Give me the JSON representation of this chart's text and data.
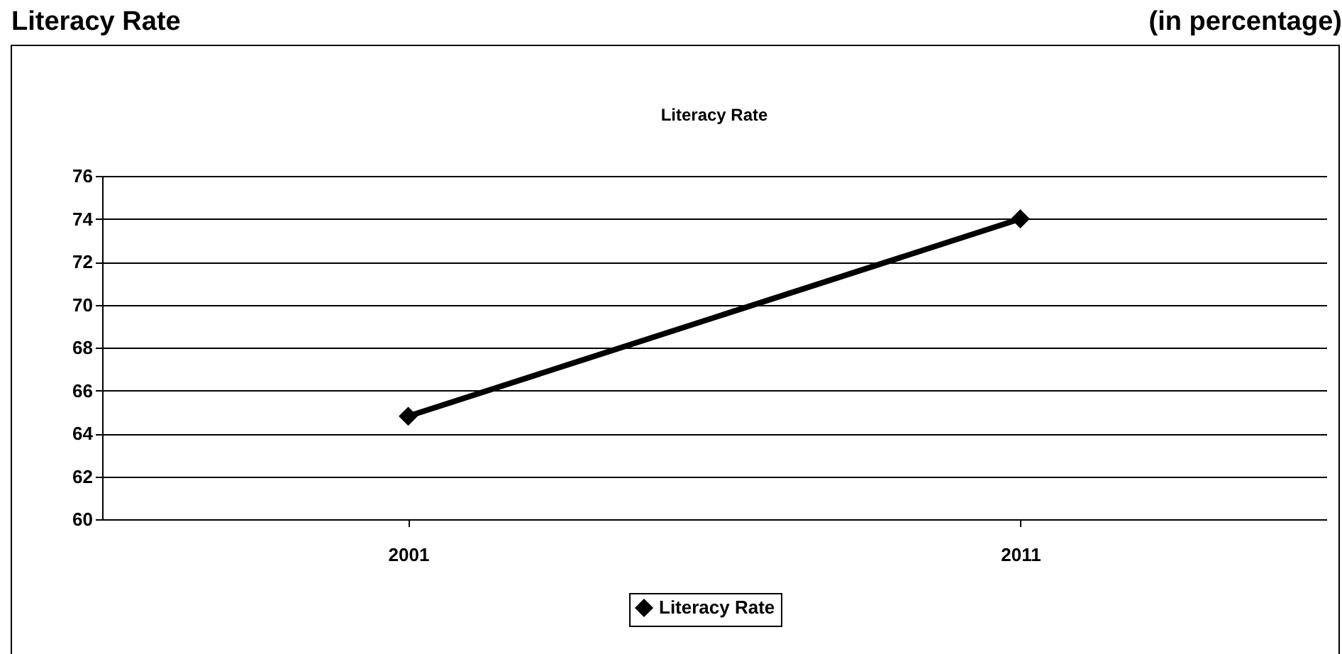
{
  "chart_data": {
    "type": "line",
    "title": "Literacy Rate",
    "subtitle": "Literacy Rate",
    "annotations": [
      "(in percentage)"
    ],
    "categories": [
      "2001",
      "2011"
    ],
    "series": [
      {
        "name": "Literacy Rate",
        "color": "#000000",
        "values": [
          64.8,
          74.0
        ]
      }
    ],
    "ylim": [
      60,
      76
    ],
    "yticks": [
      60,
      62,
      64,
      66,
      68,
      70,
      72,
      74,
      76
    ],
    "grid": "y",
    "legend": "bottom",
    "marker": "diamond",
    "line_style": "solid"
  }
}
